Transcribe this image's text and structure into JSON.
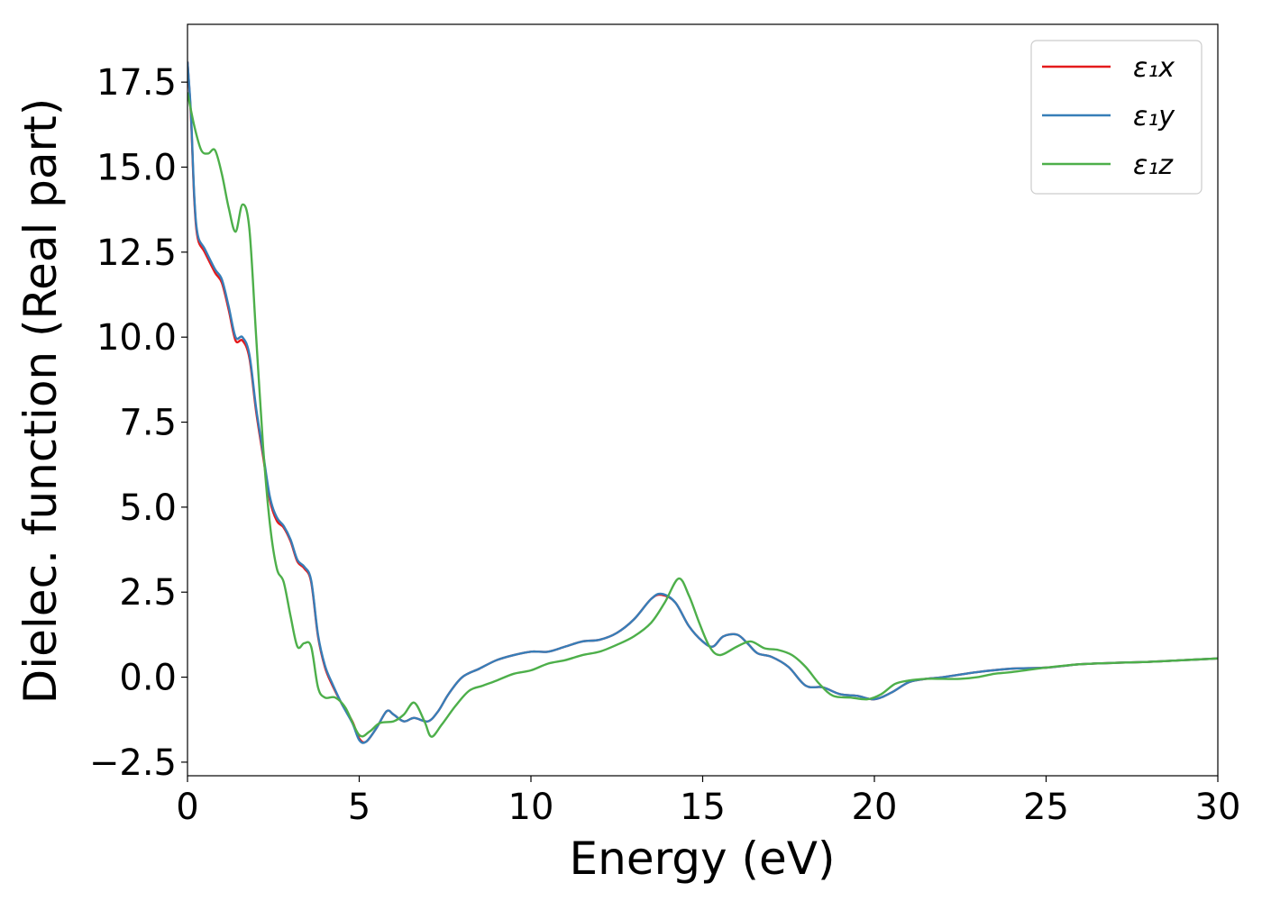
{
  "chart_data": {
    "type": "line",
    "title": "",
    "xlabel": "Energy (eV)",
    "ylabel": "Dielec. function (Real part)",
    "xlim": [
      0,
      30
    ],
    "ylim": [
      -2.9,
      19.2
    ],
    "x_ticks": [
      0,
      5,
      10,
      15,
      20,
      25,
      30
    ],
    "x_tick_labels": [
      "0",
      "5",
      "10",
      "15",
      "20",
      "25",
      "30"
    ],
    "y_ticks": [
      -2.5,
      0.0,
      2.5,
      5.0,
      7.5,
      10.0,
      12.5,
      15.0,
      17.5
    ],
    "y_tick_labels": [
      "−2.5",
      "0.0",
      "2.5",
      "5.0",
      "7.5",
      "10.0",
      "12.5",
      "15.0",
      "17.5"
    ],
    "grid": false,
    "legend_position": "top-right",
    "series": [
      {
        "name": "ε₁x",
        "color": "#e41a1c",
        "x": [
          0,
          0.1,
          0.2,
          0.3,
          0.5,
          0.8,
          1.0,
          1.2,
          1.4,
          1.6,
          1.8,
          2.0,
          2.2,
          2.4,
          2.6,
          2.8,
          3.0,
          3.2,
          3.4,
          3.6,
          3.8,
          4.0,
          4.2,
          4.5,
          4.8,
          5.0,
          5.2,
          5.5,
          5.8,
          6.0,
          6.3,
          6.6,
          7.0,
          7.3,
          7.6,
          8.0,
          8.5,
          9.0,
          9.5,
          10.0,
          10.5,
          11.0,
          11.5,
          12.0,
          12.5,
          13.0,
          13.5,
          13.8,
          14.2,
          14.6,
          15.0,
          15.3,
          15.6,
          16.0,
          16.3,
          16.6,
          17.0,
          17.5,
          18.0,
          18.5,
          19.0,
          19.5,
          20.0,
          20.5,
          21.0,
          21.5,
          22.0,
          23.0,
          24.0,
          25.0,
          26.0,
          27.0,
          28.0,
          29.0,
          30.0
        ],
        "values": [
          18.1,
          16.5,
          14.0,
          12.9,
          12.5,
          11.9,
          11.6,
          10.8,
          9.9,
          9.9,
          9.4,
          7.8,
          6.5,
          5.2,
          4.6,
          4.4,
          4.0,
          3.4,
          3.2,
          2.8,
          1.2,
          0.3,
          -0.2,
          -0.8,
          -1.3,
          -1.8,
          -1.9,
          -1.5,
          -1.0,
          -1.1,
          -1.3,
          -1.2,
          -1.3,
          -1.0,
          -0.5,
          0.0,
          0.25,
          0.5,
          0.65,
          0.75,
          0.75,
          0.9,
          1.05,
          1.1,
          1.3,
          1.7,
          2.3,
          2.42,
          2.2,
          1.5,
          1.05,
          0.9,
          1.2,
          1.25,
          1.0,
          0.7,
          0.6,
          0.3,
          -0.25,
          -0.3,
          -0.5,
          -0.55,
          -0.65,
          -0.45,
          -0.15,
          -0.05,
          0.0,
          0.15,
          0.25,
          0.28,
          0.38,
          0.42,
          0.45,
          0.5,
          0.55
        ]
      },
      {
        "name": "ε₁y",
        "color": "#377eb8",
        "x": [
          0,
          0.1,
          0.2,
          0.3,
          0.5,
          0.8,
          1.0,
          1.2,
          1.4,
          1.6,
          1.8,
          2.0,
          2.2,
          2.4,
          2.6,
          2.8,
          3.0,
          3.2,
          3.4,
          3.6,
          3.8,
          4.0,
          4.2,
          4.5,
          4.8,
          5.0,
          5.2,
          5.5,
          5.8,
          6.0,
          6.3,
          6.6,
          7.0,
          7.3,
          7.6,
          8.0,
          8.5,
          9.0,
          9.5,
          10.0,
          10.5,
          11.0,
          11.5,
          12.0,
          12.5,
          13.0,
          13.5,
          13.8,
          14.2,
          14.6,
          15.0,
          15.3,
          15.6,
          16.0,
          16.3,
          16.6,
          17.0,
          17.5,
          18.0,
          18.5,
          19.0,
          19.5,
          20.0,
          20.5,
          21.0,
          21.5,
          22.0,
          23.0,
          24.0,
          25.0,
          26.0,
          27.0,
          28.0,
          29.0,
          30.0
        ],
        "values": [
          18.1,
          16.6,
          14.1,
          13.0,
          12.6,
          12.0,
          11.7,
          10.9,
          10.0,
          10.0,
          9.5,
          7.9,
          6.6,
          5.3,
          4.7,
          4.45,
          4.05,
          3.45,
          3.25,
          2.85,
          1.25,
          0.35,
          -0.15,
          -0.8,
          -1.35,
          -1.85,
          -1.9,
          -1.5,
          -1.0,
          -1.1,
          -1.3,
          -1.2,
          -1.3,
          -1.0,
          -0.5,
          0.0,
          0.25,
          0.5,
          0.65,
          0.75,
          0.75,
          0.9,
          1.05,
          1.1,
          1.3,
          1.7,
          2.3,
          2.45,
          2.2,
          1.5,
          1.05,
          0.9,
          1.2,
          1.25,
          1.0,
          0.7,
          0.6,
          0.3,
          -0.25,
          -0.3,
          -0.5,
          -0.55,
          -0.65,
          -0.45,
          -0.15,
          -0.05,
          0.0,
          0.15,
          0.25,
          0.28,
          0.38,
          0.42,
          0.45,
          0.5,
          0.55
        ]
      },
      {
        "name": "ε₁z",
        "color": "#4daf4a",
        "x": [
          0,
          0.2,
          0.4,
          0.6,
          0.8,
          1.0,
          1.2,
          1.4,
          1.6,
          1.8,
          2.0,
          2.2,
          2.4,
          2.6,
          2.8,
          3.0,
          3.2,
          3.4,
          3.6,
          3.8,
          4.0,
          4.3,
          4.6,
          5.0,
          5.3,
          5.6,
          6.0,
          6.3,
          6.6,
          6.9,
          7.1,
          7.4,
          7.8,
          8.2,
          8.6,
          9.0,
          9.5,
          10.0,
          10.5,
          11.0,
          11.5,
          12.0,
          12.5,
          13.0,
          13.5,
          13.9,
          14.3,
          14.6,
          14.9,
          15.2,
          15.5,
          16.0,
          16.4,
          16.8,
          17.2,
          17.6,
          18.0,
          18.4,
          18.8,
          19.3,
          19.8,
          20.2,
          20.6,
          21.0,
          21.5,
          22.0,
          22.5,
          23.0,
          23.5,
          24.0,
          25.0,
          26.0,
          27.0,
          28.0,
          29.0,
          30.0
        ],
        "values": [
          17.2,
          16.2,
          15.5,
          15.4,
          15.5,
          14.8,
          13.8,
          13.1,
          13.9,
          13.2,
          10.0,
          6.8,
          4.5,
          3.2,
          2.8,
          1.8,
          0.9,
          1.0,
          0.9,
          -0.3,
          -0.6,
          -0.6,
          -0.9,
          -1.7,
          -1.6,
          -1.35,
          -1.3,
          -1.1,
          -0.75,
          -1.3,
          -1.75,
          -1.4,
          -0.85,
          -0.4,
          -0.25,
          -0.1,
          0.1,
          0.2,
          0.4,
          0.5,
          0.65,
          0.75,
          0.95,
          1.2,
          1.6,
          2.2,
          2.9,
          2.4,
          1.6,
          0.9,
          0.65,
          0.9,
          1.05,
          0.85,
          0.8,
          0.65,
          0.3,
          -0.2,
          -0.55,
          -0.6,
          -0.65,
          -0.5,
          -0.2,
          -0.1,
          -0.05,
          -0.05,
          -0.05,
          0.0,
          0.1,
          0.15,
          0.28,
          0.38,
          0.42,
          0.45,
          0.5,
          0.55
        ]
      }
    ]
  }
}
